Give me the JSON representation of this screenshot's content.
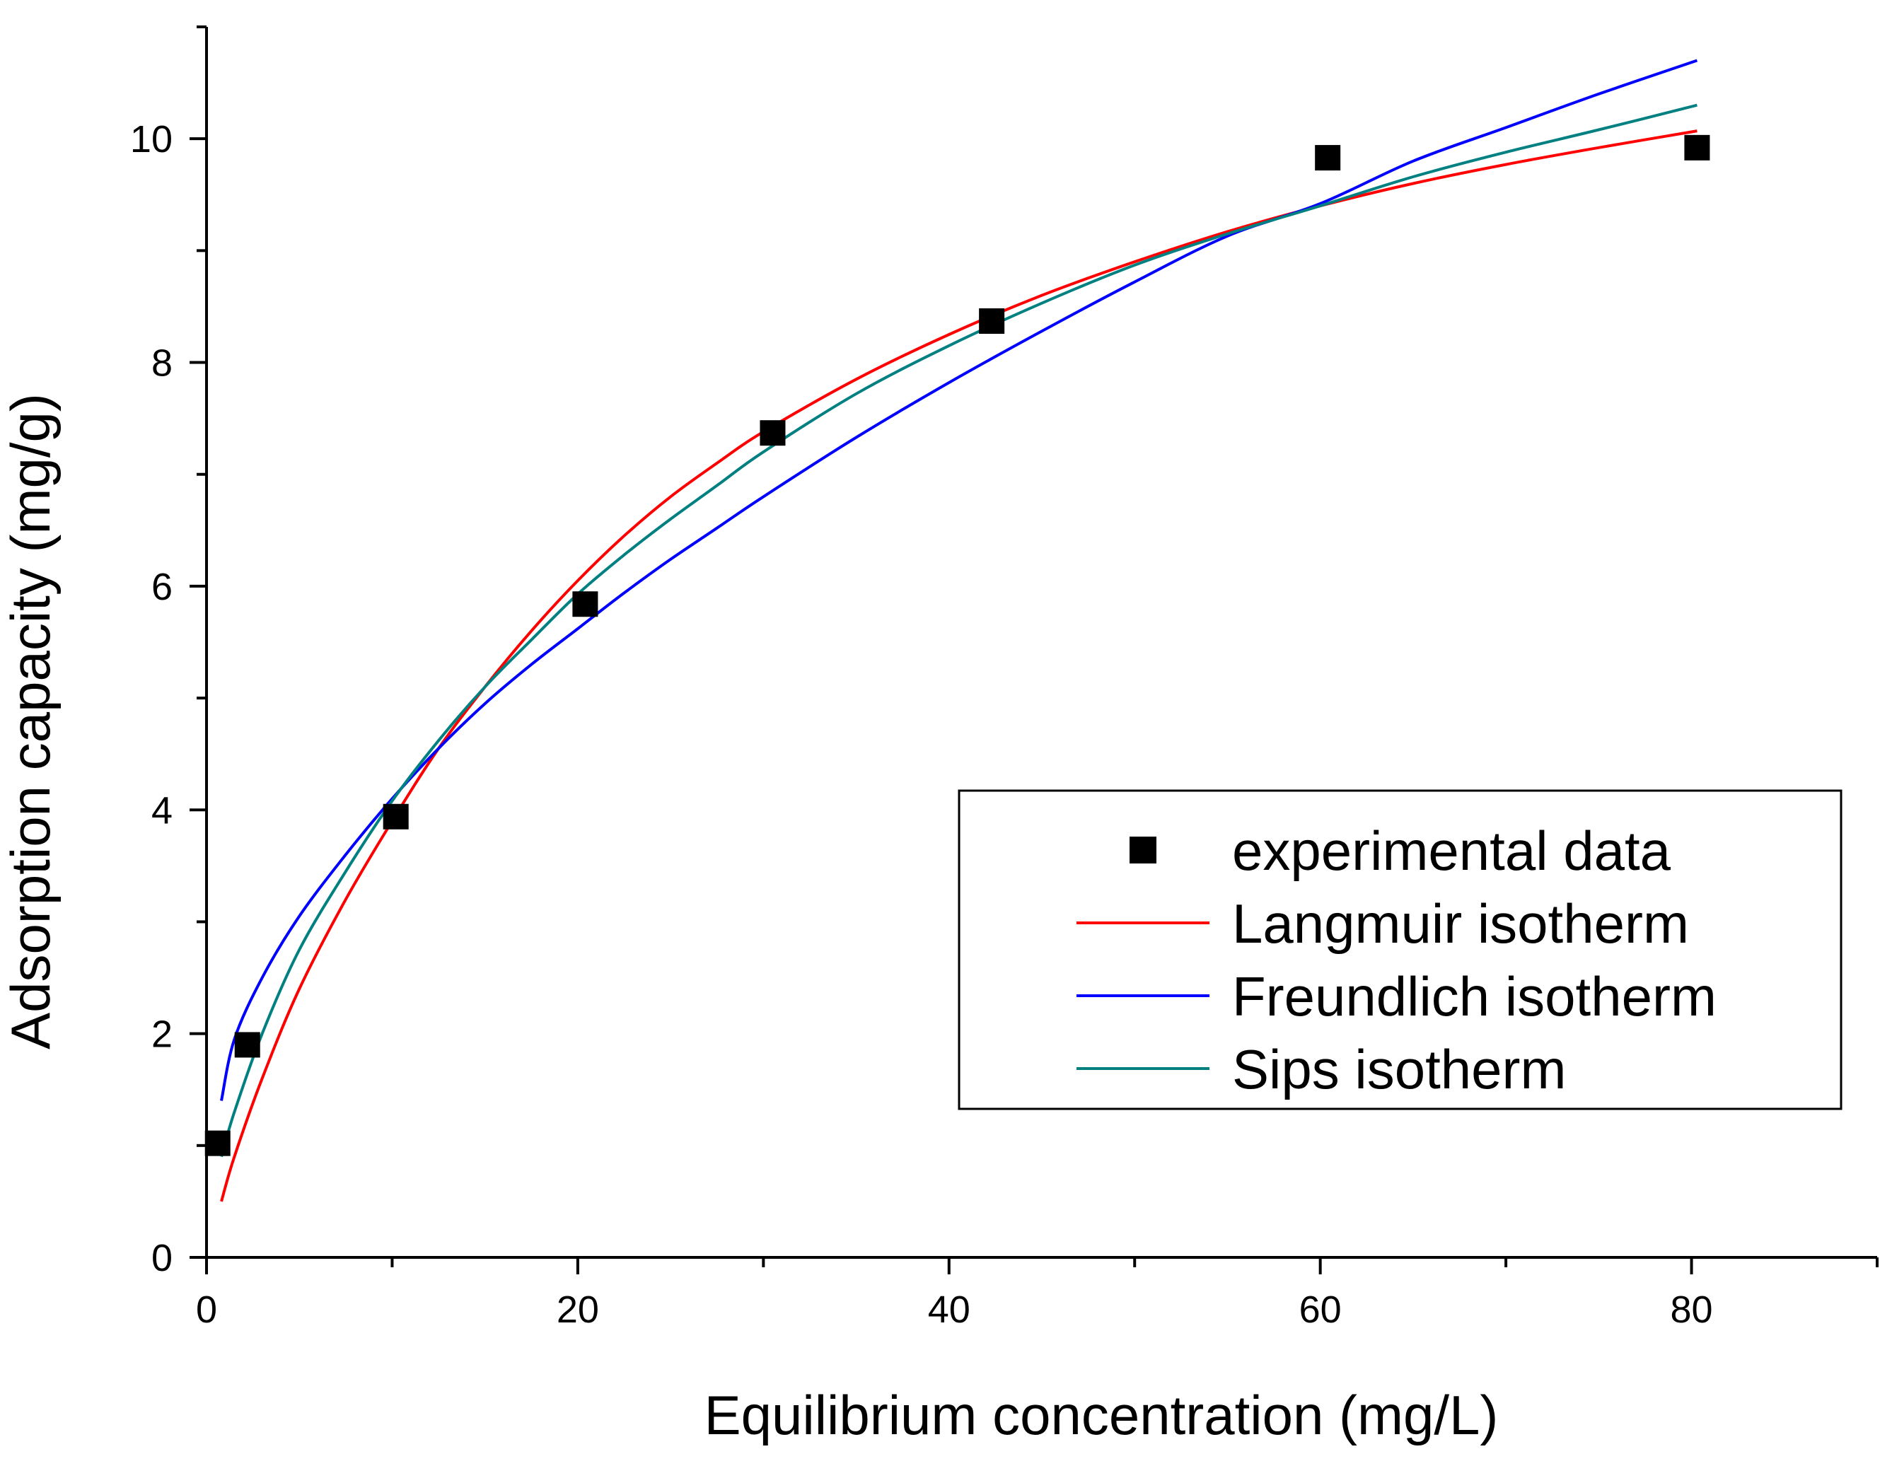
{
  "chart_data": {
    "type": "scatter",
    "title": "",
    "xlabel": "Equilibrium concentration (mg/L)",
    "ylabel": "Adsorption capacity (mg/g)",
    "xlim": [
      0,
      90
    ],
    "ylim": [
      0,
      11
    ],
    "x_ticks": [
      0,
      20,
      40,
      60,
      80
    ],
    "x_tick_labels": [
      "0",
      "20",
      "40",
      "60",
      "80"
    ],
    "x_minor_ticks": [
      10,
      30,
      50,
      70,
      90
    ],
    "y_ticks": [
      0,
      2,
      4,
      6,
      8,
      10
    ],
    "y_tick_labels": [
      "0",
      "2",
      "4",
      "6",
      "8",
      "10"
    ],
    "y_minor_ticks": [
      1,
      3,
      5,
      7,
      9,
      11
    ],
    "grid": false,
    "legend_position": "lower-right",
    "series": [
      {
        "name": "experimental data",
        "kind": "markers",
        "marker": "square",
        "color": "#000000",
        "x": [
          0.6,
          2.2,
          10.2,
          20.4,
          30.5,
          42.3,
          60.4,
          80.3
        ],
        "y": [
          1.02,
          1.9,
          3.94,
          5.84,
          7.37,
          8.37,
          9.83,
          9.92
        ]
      },
      {
        "name": "Langmuir isotherm",
        "kind": "line",
        "color": "#ff0000",
        "x": [
          0.8,
          1.5,
          3,
          5,
          7.5,
          10,
          12.5,
          15,
          17.5,
          20,
          22.5,
          25,
          27.5,
          30,
          35,
          40,
          45,
          50,
          55,
          60,
          65,
          70,
          75,
          80.3
        ],
        "y": [
          0.5,
          0.9,
          1.6,
          2.4,
          3.2,
          3.9,
          4.55,
          5.1,
          5.6,
          6.05,
          6.45,
          6.8,
          7.1,
          7.38,
          7.85,
          8.25,
          8.6,
          8.9,
          9.17,
          9.4,
          9.6,
          9.77,
          9.92,
          10.07
        ]
      },
      {
        "name": "Freundlich isotherm",
        "kind": "line",
        "color": "#0000ff",
        "x": [
          0.8,
          1.5,
          3,
          5,
          7.5,
          10,
          12.5,
          15,
          17.5,
          20,
          22.5,
          25,
          27.5,
          30,
          35,
          40,
          45,
          50,
          55,
          60,
          65,
          70,
          75,
          80.3
        ],
        "y": [
          1.4,
          1.95,
          2.5,
          3.05,
          3.6,
          4.1,
          4.55,
          4.95,
          5.3,
          5.62,
          5.94,
          6.24,
          6.52,
          6.8,
          7.33,
          7.82,
          8.28,
          8.72,
          9.13,
          9.42,
          9.8,
          10.1,
          10.4,
          10.7
        ]
      },
      {
        "name": "Sips isotherm",
        "kind": "line",
        "color": "#008080",
        "x": [
          0.8,
          1.5,
          3,
          5,
          7.5,
          10,
          12.5,
          15,
          17.5,
          20,
          22.5,
          25,
          27.5,
          30,
          35,
          40,
          45,
          50,
          55,
          60,
          65,
          70,
          75,
          80.3
        ],
        "y": [
          0.9,
          1.3,
          2.0,
          2.75,
          3.45,
          4.08,
          4.62,
          5.1,
          5.52,
          5.93,
          6.28,
          6.6,
          6.9,
          7.2,
          7.72,
          8.15,
          8.53,
          8.87,
          9.15,
          9.4,
          9.66,
          9.88,
          10.08,
          10.3
        ]
      }
    ]
  }
}
